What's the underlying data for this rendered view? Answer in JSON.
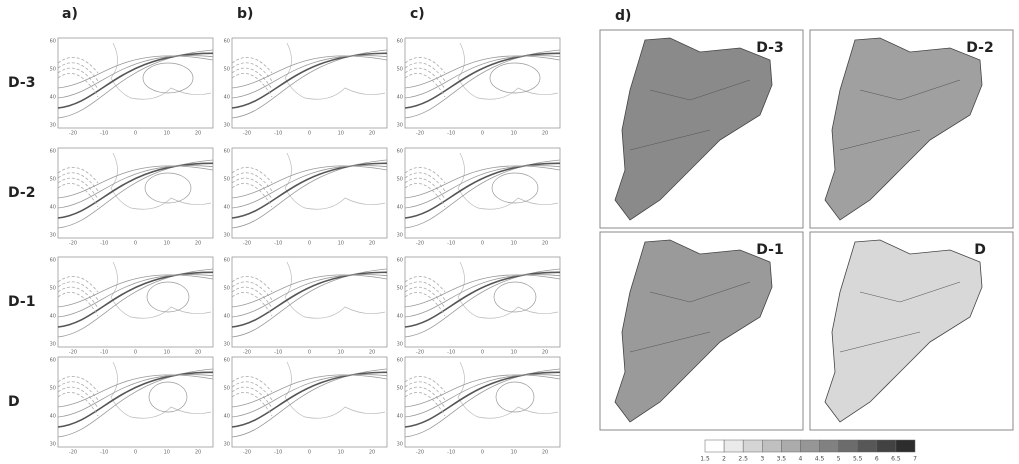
{
  "panel_labels": [
    "a)",
    "b)",
    "c)",
    "d)"
  ],
  "row_labels": [
    "D-3",
    "D-2",
    "D-1",
    "D"
  ],
  "map_titles": [
    "D-3",
    "D-2",
    "D-1",
    "D"
  ],
  "lat_ticks": [
    60,
    50,
    40,
    30
  ],
  "lon_ticks": [
    -20,
    -10,
    0,
    10,
    20
  ],
  "colorbar": {
    "ticks": [
      1.5,
      2,
      2.5,
      3,
      3.5,
      4,
      4.5,
      5,
      5.5,
      6,
      6.5,
      7
    ]
  }
}
